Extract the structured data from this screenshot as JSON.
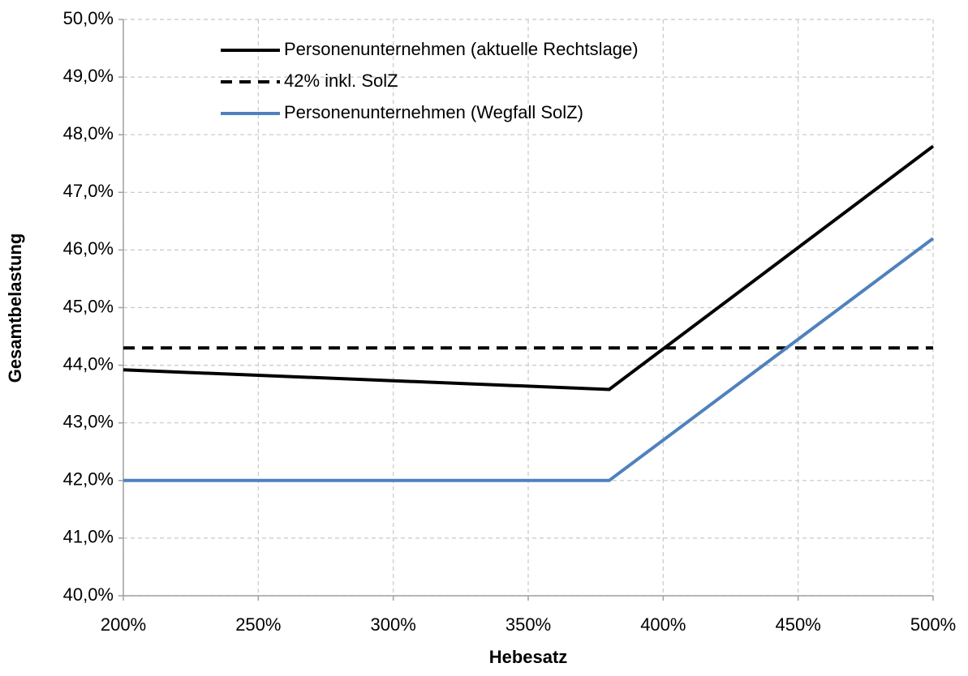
{
  "chart_data": {
    "type": "line",
    "x_label": "Hebesatz",
    "y_label": "Gesamtbelastung",
    "xlim": [
      200,
      500
    ],
    "xticks": [
      {
        "value": 200,
        "label": "200%"
      },
      {
        "value": 250,
        "label": "250%"
      },
      {
        "value": 300,
        "label": "300%"
      },
      {
        "value": 350,
        "label": "350%"
      },
      {
        "value": 400,
        "label": "400%"
      },
      {
        "value": 450,
        "label": "450%"
      },
      {
        "value": 500,
        "label": "500%"
      }
    ],
    "ylim": [
      40,
      50
    ],
    "yticks": [
      {
        "value": 40,
        "label": "40,0%"
      },
      {
        "value": 41,
        "label": "41,0%"
      },
      {
        "value": 42,
        "label": "42,0%"
      },
      {
        "value": 43,
        "label": "43,0%"
      },
      {
        "value": 44,
        "label": "44,0%"
      },
      {
        "value": 45,
        "label": "45,0%"
      },
      {
        "value": 46,
        "label": "46,0%"
      },
      {
        "value": 47,
        "label": "47,0%"
      },
      {
        "value": 48,
        "label": "48,0%"
      },
      {
        "value": 49,
        "label": "49,0%"
      },
      {
        "value": 50,
        "label": "50,0%"
      }
    ],
    "grid": true,
    "legend": "top-left",
    "series": [
      {
        "name": "Personenunternehmen (aktuelle Rechtslage)",
        "color": "#000000",
        "style": "solid",
        "x": [
          200,
          380,
          500
        ],
        "values": [
          43.92,
          43.58,
          47.8
        ]
      },
      {
        "name": "42% inkl. SolZ",
        "color": "#000000",
        "style": "dashed",
        "x": [
          200,
          500
        ],
        "values": [
          44.3,
          44.3
        ]
      },
      {
        "name": "Personenunternehmen (Wegfall SolZ)",
        "color": "#4f81bd",
        "style": "solid",
        "x": [
          200,
          380,
          500
        ],
        "values": [
          42.0,
          42.0,
          46.2
        ]
      }
    ]
  }
}
